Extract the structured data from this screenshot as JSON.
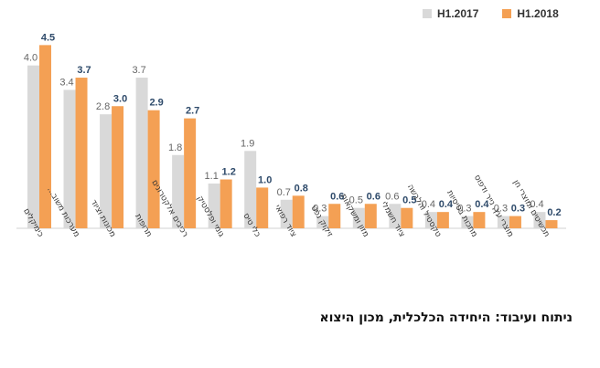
{
  "chart_data": {
    "type": "bar",
    "categories": [
      "כימיקלים",
      "מערכות משוב...",
      "מכונות וציוד",
      "תרופות",
      "רכיבים אלקטרונים",
      "גומי ופלסטיק",
      "כלי טיס",
      "ציוד רפואי",
      "זיקוק נפט",
      "מזון ומשקאות",
      "ציוד חשמלי",
      "טקסטיל והלבשה",
      "מתכות בסיסיות",
      "מוצרי עץ, נייר ודפוס",
      "תכשיטים ומוצרי חן"
    ],
    "series": [
      {
        "name": "H1.2017",
        "values": [
          4.0,
          3.4,
          2.8,
          3.7,
          1.8,
          1.1,
          1.9,
          0.7,
          0.3,
          0.5,
          0.6,
          0.4,
          0.3,
          0.3,
          0.4
        ]
      },
      {
        "name": "H1.2018",
        "values": [
          4.5,
          3.7,
          3.0,
          2.9,
          2.7,
          1.2,
          1.0,
          0.8,
          0.6,
          0.6,
          0.5,
          0.4,
          0.4,
          0.3,
          0.2
        ]
      }
    ],
    "ylim": [
      0,
      4.8
    ],
    "grid": false,
    "legend_position": "top-right",
    "colors": {
      "H1.2017": "#d9d9d9",
      "H1.2018": "#f4a054",
      "label2017": "#666666",
      "label2018": "#2e4a6a"
    }
  },
  "source_note": "ניתוח ועיבוד: היחידה הכלכלית, מכון היצוא"
}
